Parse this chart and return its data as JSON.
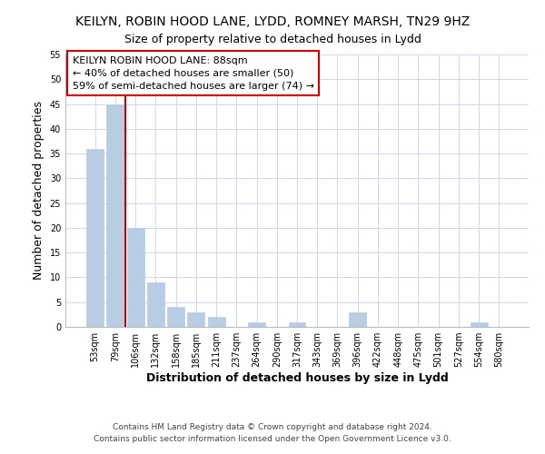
{
  "title": "KEILYN, ROBIN HOOD LANE, LYDD, ROMNEY MARSH, TN29 9HZ",
  "subtitle": "Size of property relative to detached houses in Lydd",
  "xlabel": "Distribution of detached houses by size in Lydd",
  "ylabel": "Number of detached properties",
  "bar_labels": [
    "53sqm",
    "79sqm",
    "106sqm",
    "132sqm",
    "158sqm",
    "185sqm",
    "211sqm",
    "237sqm",
    "264sqm",
    "290sqm",
    "317sqm",
    "343sqm",
    "369sqm",
    "396sqm",
    "422sqm",
    "448sqm",
    "475sqm",
    "501sqm",
    "527sqm",
    "554sqm",
    "580sqm"
  ],
  "bar_values": [
    36,
    45,
    20,
    9,
    4,
    3,
    2,
    0,
    1,
    0,
    1,
    0,
    0,
    3,
    0,
    0,
    0,
    0,
    0,
    1,
    0
  ],
  "bar_color": "#b8cce4",
  "bar_edge_color": "#b8cce4",
  "vline_x_index": 1.5,
  "vline_color": "#cc0000",
  "annotation_text_line1": "KEILYN ROBIN HOOD LANE: 88sqm",
  "annotation_text_line2": "← 40% of detached houses are smaller (50)",
  "annotation_text_line3": "59% of semi-detached houses are larger (74) →",
  "ylim": [
    0,
    55
  ],
  "yticks": [
    0,
    5,
    10,
    15,
    20,
    25,
    30,
    35,
    40,
    45,
    50,
    55
  ],
  "footer_line1": "Contains HM Land Registry data © Crown copyright and database right 2024.",
  "footer_line2": "Contains public sector information licensed under the Open Government Licence v3.0.",
  "background_color": "#ffffff",
  "grid_color": "#d0d8e8",
  "title_fontsize": 10,
  "subtitle_fontsize": 9,
  "axis_label_fontsize": 9,
  "tick_fontsize": 7,
  "annotation_fontsize": 8,
  "footer_fontsize": 6.5
}
